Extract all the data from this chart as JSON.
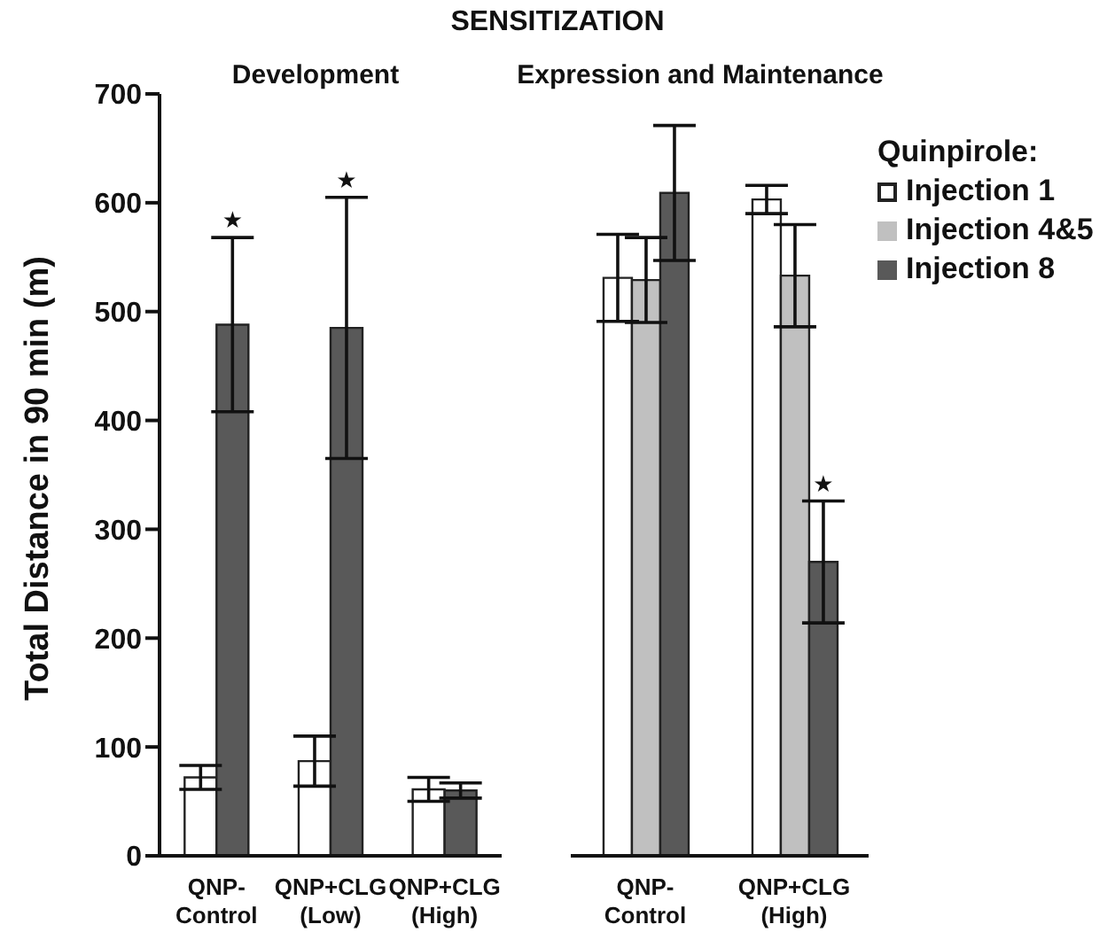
{
  "chart_data": [
    {
      "type": "bar",
      "title": "SENSITIZATION",
      "subtitle": "Development",
      "ylabel": "Total Distance in 90 min (m)",
      "categories": [
        "QNP-\nControl",
        "QNP+CLG\n(Low)",
        "QNP+CLG\n(High)"
      ],
      "ylim": [
        0,
        700
      ],
      "yticks": [
        0,
        100,
        200,
        300,
        400,
        500,
        600,
        700
      ],
      "grid": false,
      "legend": false,
      "series": [
        {
          "color": "#ffffff",
          "values": [
            72,
            87,
            61
          ],
          "errors": [
            11,
            23,
            11
          ]
        },
        {
          "color": "#595959",
          "values": [
            488,
            485,
            60
          ],
          "errors": [
            80,
            120,
            7
          ]
        }
      ],
      "annotations": [
        {
          "text": "★",
          "x": "QNP-\nControl",
          "y": 568
        },
        {
          "text": "★",
          "x": "QNP+CLG\n(Low)",
          "y": 605
        }
      ]
    },
    {
      "type": "bar",
      "subtitle": "Expression and Maintenance",
      "categories": [
        "QNP-\nControl",
        "QNP+CLG\n(High)"
      ],
      "ylim": [
        0,
        700
      ],
      "tick_labels": "x",
      "grid": false,
      "legend": "right",
      "legend_title": "Quinpirole:",
      "series": [
        {
          "name": "Injection 1",
          "color": "#ffffff",
          "values": [
            531,
            603
          ],
          "errors": [
            40,
            13
          ]
        },
        {
          "name": "Injection 4&5",
          "color": "#c0c0c0",
          "values": [
            529,
            533
          ],
          "errors": [
            39,
            47
          ]
        },
        {
          "name": "Injection 8",
          "color": "#595959",
          "values": [
            609,
            270
          ],
          "errors": [
            62,
            56
          ]
        }
      ],
      "annotations": [
        {
          "text": "★",
          "x": "QNP+CLG\n(High)",
          "y": 326
        }
      ]
    }
  ]
}
